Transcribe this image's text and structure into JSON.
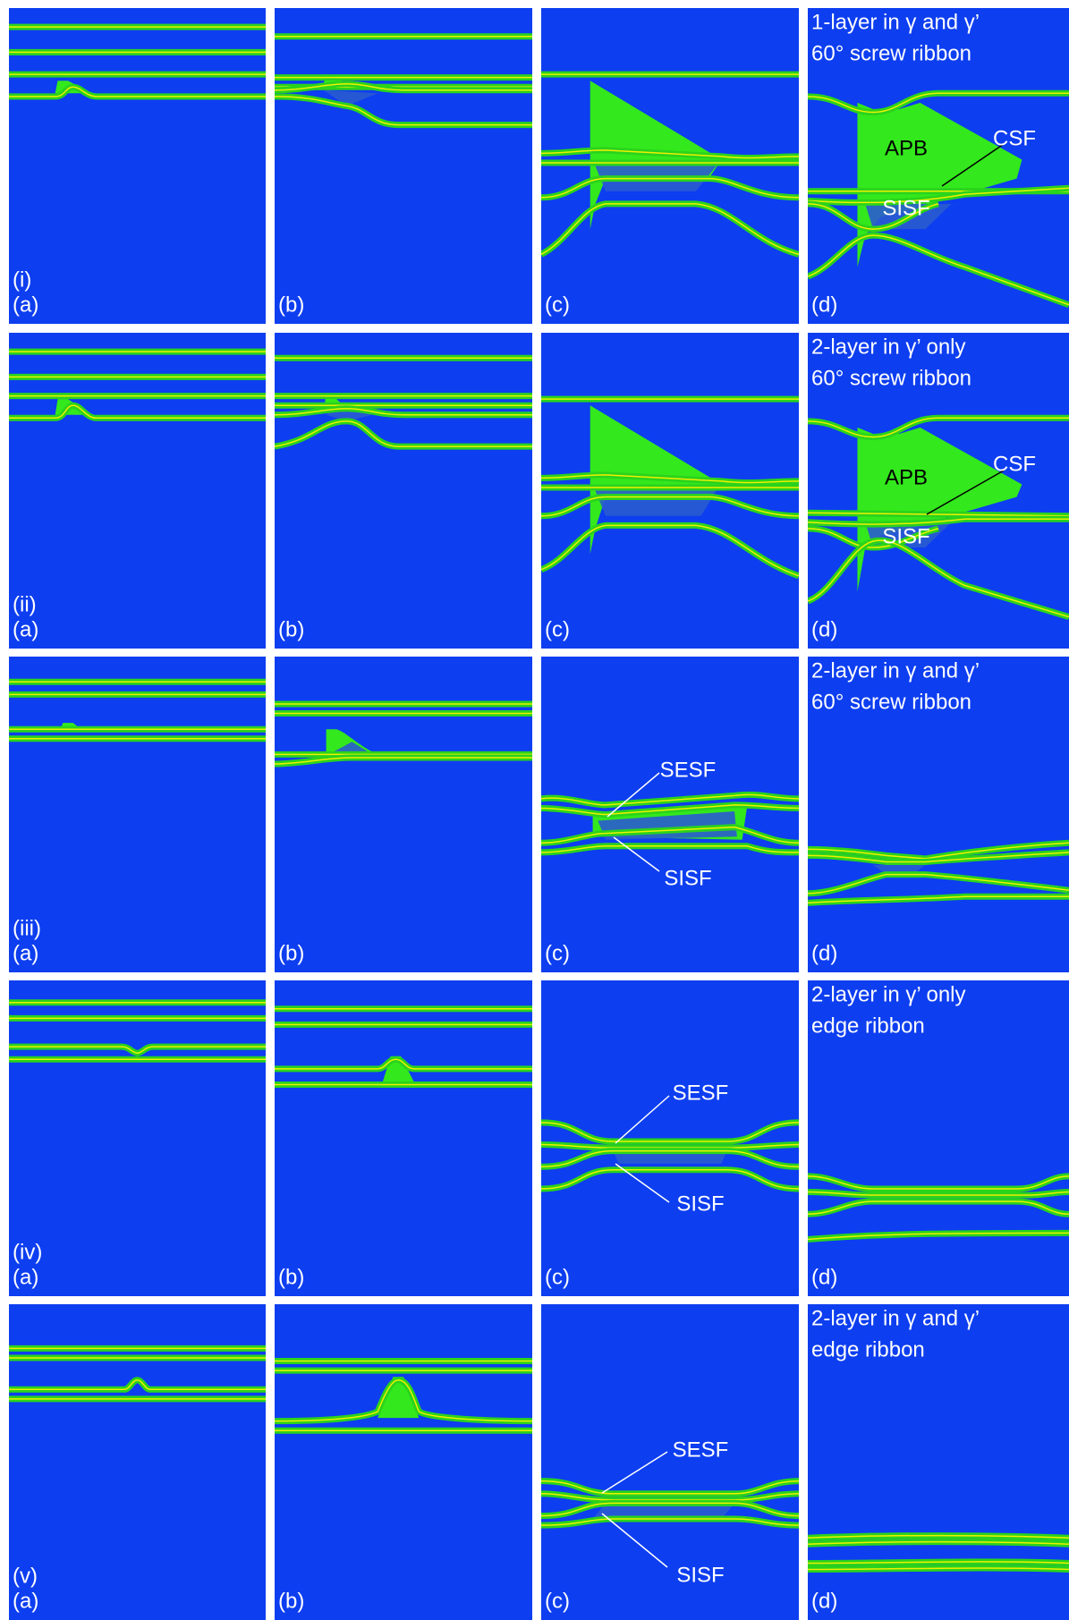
{
  "rows": [
    {
      "label": "(i)",
      "panels": [
        {
          "label": "(a)"
        },
        {
          "label": "(b)"
        },
        {
          "label": "(c)"
        },
        {
          "label": "(d)",
          "description": [
            "1-layer in γ and γ’",
            "60° screw ribbon"
          ],
          "annotations": [
            "APB",
            "CSF",
            "SISF"
          ]
        }
      ]
    },
    {
      "label": "(ii)",
      "panels": [
        {
          "label": "(a)"
        },
        {
          "label": "(b)"
        },
        {
          "label": "(c)"
        },
        {
          "label": "(d)",
          "description": [
            "2-layer in γ’ only",
            "60° screw ribbon"
          ],
          "annotations": [
            "APB",
            "CSF",
            "SISF"
          ]
        }
      ]
    },
    {
      "label": "(iii)",
      "panels": [
        {
          "label": "(a)"
        },
        {
          "label": "(b)"
        },
        {
          "label": "(c)",
          "annotations": [
            "SESF",
            "SISF"
          ]
        },
        {
          "label": "(d)",
          "description": [
            "2-layer in γ and γ’",
            "60° screw ribbon"
          ]
        }
      ]
    },
    {
      "label": "(iv)",
      "panels": [
        {
          "label": "(a)"
        },
        {
          "label": "(b)"
        },
        {
          "label": "(c)",
          "annotations": [
            "SESF",
            "SISF"
          ]
        },
        {
          "label": "(d)",
          "description": [
            "2-layer in γ’ only",
            "edge ribbon"
          ]
        }
      ]
    },
    {
      "label": "(v)",
      "panels": [
        {
          "label": "(a)"
        },
        {
          "label": "(b)"
        },
        {
          "label": "(c)",
          "annotations": [
            "SESF",
            "SISF"
          ]
        },
        {
          "label": "(d)",
          "description": [
            "2-layer in γ and γ’",
            "edge ribbon"
          ]
        }
      ]
    }
  ]
}
